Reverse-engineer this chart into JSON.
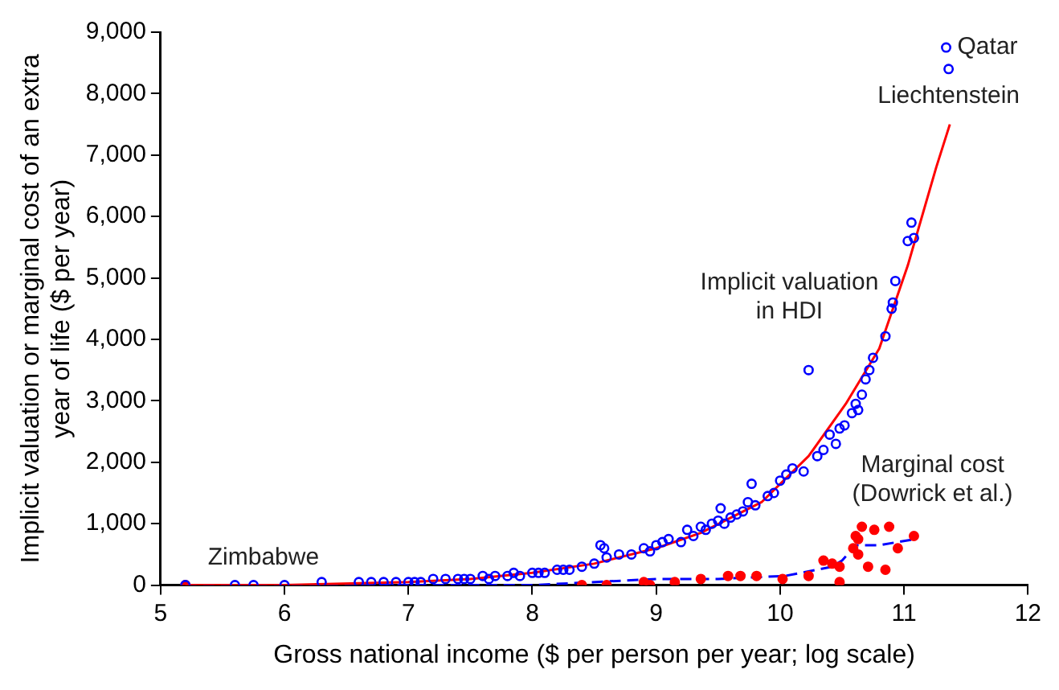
{
  "chart_data": {
    "type": "scatter",
    "xlabel": "Gross national income ($ per person per year; log scale)",
    "ylabel": "Implicit valuation or marginal cost of an extra year of life ($ per year)",
    "xlim": [
      5,
      12
    ],
    "xticks": [
      5,
      6,
      7,
      8,
      9,
      10,
      11,
      12
    ],
    "ylim": [
      0,
      9000
    ],
    "yticks": [
      0,
      {
        "value": 1000,
        "label": "1,000"
      },
      {
        "value": 2000,
        "label": "2,000"
      },
      {
        "value": 3000,
        "label": "3,000"
      },
      {
        "value": 4000,
        "label": "4,000"
      },
      {
        "value": 5000,
        "label": "5,000"
      },
      {
        "value": 6000,
        "label": "6,000"
      },
      {
        "value": 7000,
        "label": "7,000"
      },
      {
        "value": 8000,
        "label": "8,000"
      },
      {
        "value": 9000,
        "label": "9,000"
      }
    ],
    "grid": false,
    "legend": false,
    "series": [
      {
        "type": "scatter",
        "marker": "circle",
        "color": "#0000ff",
        "x": [
          5.2,
          5.6,
          5.75,
          6.0,
          6.3,
          6.6,
          6.7,
          6.8,
          6.9,
          7.0,
          7.05,
          7.1,
          7.2,
          7.3,
          7.4,
          7.45,
          7.5,
          7.6,
          7.65,
          7.7,
          7.8,
          7.85,
          7.9,
          8.0,
          8.05,
          8.1,
          8.2,
          8.25,
          8.3,
          8.4,
          8.5,
          8.55,
          8.58,
          8.6,
          8.7,
          8.8,
          8.9,
          8.95,
          9.0,
          9.05,
          9.1,
          9.2,
          9.25,
          9.3,
          9.36,
          9.4,
          9.45,
          9.5,
          9.52,
          9.55,
          9.6,
          9.65,
          9.7,
          9.74,
          9.77,
          9.8,
          9.9,
          9.95,
          10.0,
          10.05,
          10.1,
          10.19,
          10.23,
          10.3,
          10.35,
          10.4,
          10.45,
          10.48,
          10.52,
          10.58,
          10.61,
          10.63,
          10.66,
          10.69,
          10.72,
          10.75,
          10.85,
          10.9,
          10.91,
          10.93,
          11.03,
          11.06,
          11.08,
          11.34,
          11.36
        ],
        "values": [
          0,
          0,
          0,
          0,
          50,
          50,
          50,
          50,
          50,
          50,
          50,
          50,
          100,
          100,
          100,
          100,
          100,
          150,
          100,
          150,
          150,
          200,
          150,
          200,
          200,
          200,
          250,
          250,
          250,
          300,
          350,
          650,
          600,
          450,
          500,
          500,
          600,
          550,
          650,
          700,
          750,
          700,
          900,
          800,
          950,
          900,
          1000,
          1050,
          1250,
          1000,
          1100,
          1150,
          1200,
          1350,
          1650,
          1300,
          1450,
          1500,
          1700,
          1800,
          1900,
          1850,
          3500,
          2100,
          2200,
          2450,
          2300,
          2550,
          2600,
          2800,
          2950,
          2850,
          3100,
          3350,
          3500,
          3700,
          4050,
          4500,
          4600,
          4950,
          5600,
          5900,
          5650,
          8750,
          8400
        ]
      },
      {
        "type": "line",
        "marker": "none",
        "line_style": "solid",
        "color": "#ff0000",
        "x": [
          5.2,
          6,
          7,
          7.5,
          8,
          8.5,
          9,
          9.36,
          9.85,
          10.23,
          10.53,
          10.8,
          11.03,
          11.26,
          11.37
        ],
        "values": [
          0,
          0,
          50,
          100,
          200,
          350,
          600,
          850,
          1350,
          2100,
          2950,
          3850,
          5200,
          6800,
          7500
        ]
      },
      {
        "type": "scatter",
        "marker": "circle",
        "color": "#ff0000",
        "x": [
          5.2,
          8.4,
          8.6,
          8.9,
          8.95,
          9.15,
          9.36,
          9.58,
          9.68,
          9.81,
          10.02,
          10.23,
          10.35,
          10.42,
          10.48,
          10.48,
          10.59,
          10.61,
          10.63,
          10.63,
          10.66,
          10.71,
          10.76,
          10.85,
          10.88,
          10.95,
          11.08
        ],
        "values": [
          0,
          0,
          0,
          50,
          0,
          50,
          100,
          150,
          150,
          150,
          100,
          150,
          400,
          350,
          300,
          50,
          600,
          800,
          750,
          500,
          950,
          300,
          900,
          250,
          950,
          600,
          800
        ]
      },
      {
        "type": "line",
        "marker": "none",
        "line_style": "dashed",
        "color": "#0000ff",
        "x": [
          5.2,
          8,
          9,
          9.5,
          10.04,
          10.42,
          10.5,
          10.61,
          10.8,
          11.09
        ],
        "values": [
          0,
          0,
          100,
          100,
          150,
          300,
          400,
          650,
          650,
          750
        ]
      }
    ],
    "annotations": [
      {
        "text": "Qatar",
        "x": 11.34,
        "y": 8750
      },
      {
        "text": "Liechtenstein",
        "x": 11.36,
        "y": 8400
      },
      {
        "text": "Zimbabwe",
        "x": 5.2,
        "y": 0
      },
      "Implicit valuation in HDI",
      "Marginal cost (Dowrick et al.)"
    ]
  }
}
